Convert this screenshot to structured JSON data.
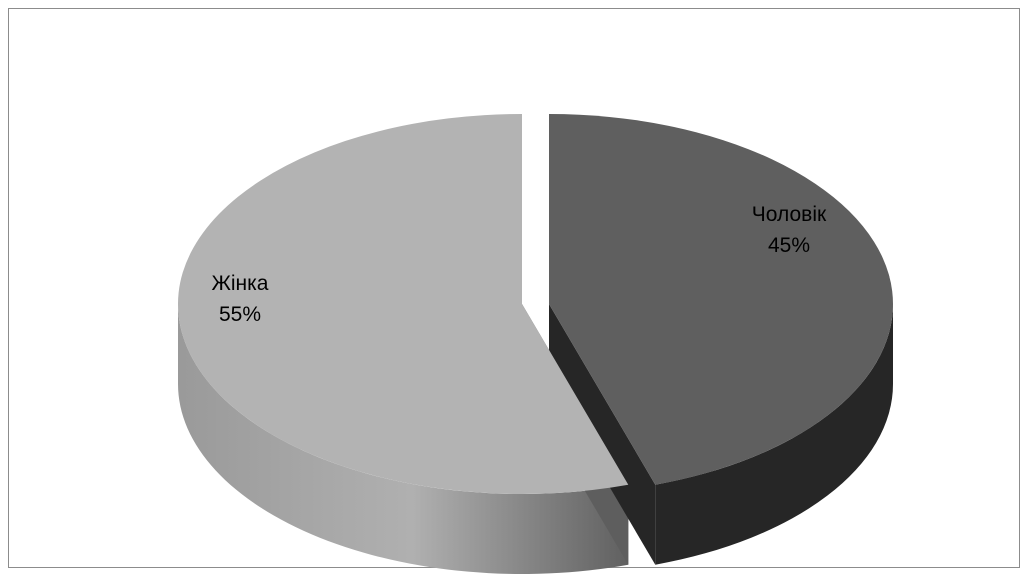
{
  "chart_data": {
    "type": "pie",
    "style": "3d-exploded",
    "title": "",
    "categories": [
      "Жінка",
      "Чоловік"
    ],
    "values": [
      55,
      45
    ],
    "value_labels": [
      "55%",
      "45%"
    ],
    "colors": {
      "Жінка": {
        "top": "#b3b3b3",
        "side_light": "#bcbcbc",
        "side_dark": "#5e5e5e"
      },
      "Чоловік": {
        "top": "#5f5f5f",
        "side": "#262626"
      }
    },
    "legend": "none",
    "grid": false
  }
}
